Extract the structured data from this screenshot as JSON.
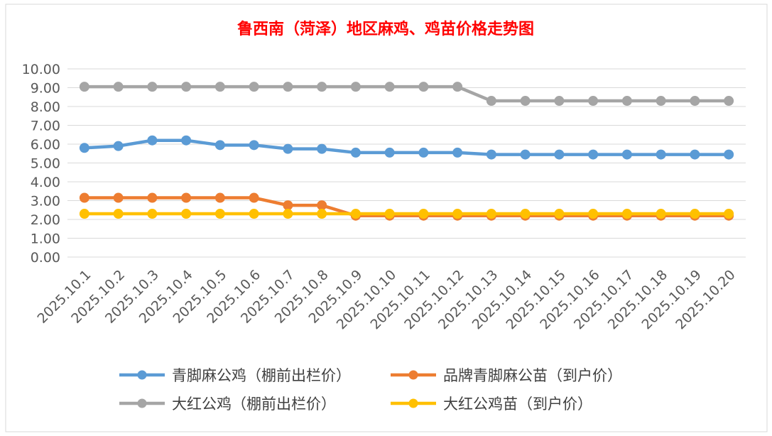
{
  "chart_data": {
    "type": "line",
    "title": "鲁西南（菏泽）地区麻鸡、鸡苗价格走势图",
    "xlabel": "",
    "ylabel": "",
    "ylim": [
      0,
      10
    ],
    "ytick_labels": [
      "0.00",
      "1.00",
      "2.00",
      "3.00",
      "4.00",
      "5.00",
      "6.00",
      "7.00",
      "8.00",
      "9.00",
      "10.00"
    ],
    "grid": true,
    "legend_position": "bottom",
    "categories": [
      "2025.10.1",
      "2025.10.2",
      "2025.10.3",
      "2025.10.4",
      "2025.10.5",
      "2025.10.6",
      "2025.10.7",
      "2025.10.8",
      "2025.10.9",
      "2025.10.10",
      "2025.10.11",
      "2025.10.12",
      "2025.10.13",
      "2025.10.14",
      "2025.10.15",
      "2025.10.16",
      "2025.10.17",
      "2025.10.18",
      "2025.10.19",
      "2025.10.20"
    ],
    "series": [
      {
        "name": "青脚麻公鸡（棚前出栏价）",
        "color": "#5B9BD5",
        "values": [
          5.8,
          5.9,
          6.2,
          6.2,
          5.95,
          5.95,
          5.75,
          5.75,
          5.55,
          5.55,
          5.55,
          5.55,
          5.45,
          5.45,
          5.45,
          5.45,
          5.45,
          5.45,
          5.45,
          5.45
        ]
      },
      {
        "name": "品牌青脚麻公苗（到户价）",
        "color": "#ED7D31",
        "values": [
          3.15,
          3.15,
          3.15,
          3.15,
          3.15,
          3.15,
          2.75,
          2.75,
          2.2,
          2.2,
          2.2,
          2.2,
          2.2,
          2.2,
          2.2,
          2.2,
          2.2,
          2.2,
          2.2,
          2.2
        ]
      },
      {
        "name": "大红公鸡（棚前出栏价）",
        "color": "#A5A5A5",
        "values": [
          9.05,
          9.05,
          9.05,
          9.05,
          9.05,
          9.05,
          9.05,
          9.05,
          9.05,
          9.05,
          9.05,
          9.05,
          8.3,
          8.3,
          8.3,
          8.3,
          8.3,
          8.3,
          8.3,
          8.3
        ]
      },
      {
        "name": "大红公鸡苗（到户价）",
        "color": "#FFC000",
        "values": [
          2.3,
          2.3,
          2.3,
          2.3,
          2.3,
          2.3,
          2.3,
          2.3,
          2.3,
          2.3,
          2.3,
          2.3,
          2.3,
          2.3,
          2.3,
          2.3,
          2.3,
          2.3,
          2.3,
          2.3
        ]
      }
    ],
    "title_color": "#FF0000"
  }
}
